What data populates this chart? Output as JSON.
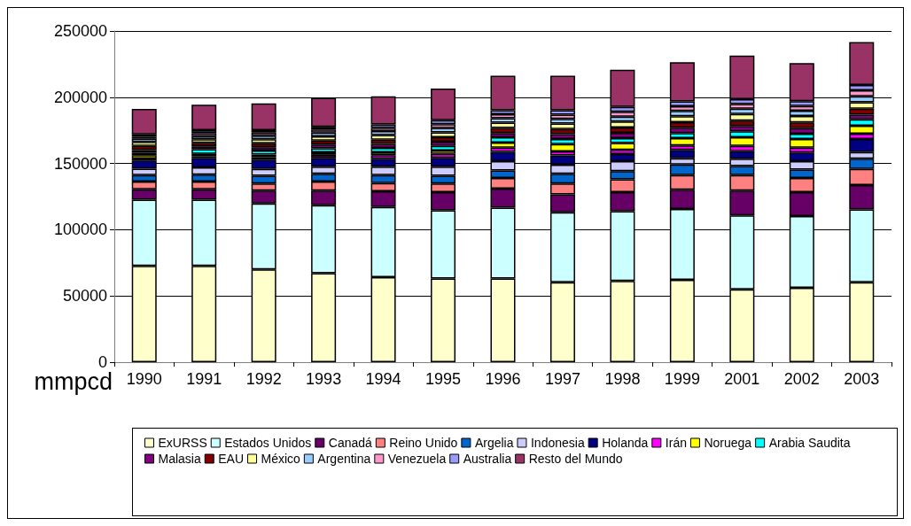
{
  "chart_data": {
    "type": "bar",
    "stacked": true,
    "ylabel": "mmpcd",
    "categories": [
      "1990",
      "1991",
      "1992",
      "1993",
      "1994",
      "1995",
      "1996",
      "1997",
      "1998",
      "1999",
      "2001",
      "2002",
      "2003"
    ],
    "ylim": [
      0,
      250000
    ],
    "yticks": [
      0,
      50000,
      100000,
      150000,
      200000,
      250000
    ],
    "grid": "y",
    "legend": "bottom",
    "series": [
      {
        "name": "ExURSS",
        "color": "#ffffcc",
        "values": [
          72700,
          72700,
          70000,
          67200,
          64200,
          63100,
          63100,
          60400,
          61400,
          62100,
          55000,
          56100,
          60400
        ]
      },
      {
        "name": "Estados Unidos",
        "color": "#ccffff",
        "values": [
          50000,
          50000,
          49900,
          51200,
          53000,
          51500,
          53600,
          52700,
          52600,
          53600,
          55800,
          54200,
          54900
        ]
      },
      {
        "name": "Canadá",
        "color": "#660066",
        "values": [
          7800,
          7800,
          9600,
          11100,
          11800,
          13800,
          14300,
          13600,
          14400,
          14400,
          18700,
          18100,
          18400
        ]
      },
      {
        "name": "Reino Unido",
        "color": "#ff8080",
        "values": [
          5800,
          5800,
          5300,
          6800,
          6200,
          6400,
          8000,
          8100,
          9600,
          11100,
          11700,
          10600,
          12200
        ]
      },
      {
        "name": "Argelia",
        "color": "#0066cc",
        "values": [
          4900,
          5300,
          5900,
          5900,
          6000,
          5900,
          5800,
          7400,
          6300,
          8000,
          6800,
          6400,
          7600
        ]
      },
      {
        "name": "Indonesia",
        "color": "#ccccff",
        "values": [
          4900,
          5500,
          5200,
          5300,
          6300,
          6800,
          7000,
          6800,
          7500,
          4700,
          5500,
          6400,
          5100
        ]
      },
      {
        "name": "Holanda",
        "color": "#000080",
        "values": [
          6100,
          7200,
          7000,
          6800,
          6000,
          6800,
          7000,
          7100,
          5300,
          6400,
          5800,
          6400,
          9800
        ]
      },
      {
        "name": "Irán",
        "color": "#ff00ff",
        "values": [
          1500,
          1200,
          1800,
          2200,
          2800,
          3000,
          3200,
          3000,
          3200,
          3300,
          4000,
          3800,
          4000
        ]
      },
      {
        "name": "Noruega",
        "color": "#ffff00",
        "values": [
          2500,
          1800,
          2000,
          2000,
          2200,
          2500,
          3800,
          5500,
          5200,
          5500,
          6500,
          6500,
          6000
        ]
      },
      {
        "name": "Arabia Saudita",
        "color": "#00ffff",
        "values": [
          2000,
          3500,
          3000,
          3000,
          3200,
          3500,
          4000,
          3800,
          3600,
          3800,
          4500,
          4000,
          5000
        ]
      },
      {
        "name": "Malasia",
        "color": "#800080",
        "values": [
          2000,
          2200,
          2500,
          2800,
          3000,
          3200,
          3200,
          3800,
          4000,
          4000,
          4000,
          4200,
          3500
        ]
      },
      {
        "name": "EAU",
        "color": "#800000",
        "values": [
          3000,
          2600,
          3000,
          3000,
          3200,
          3300,
          3800,
          3800,
          4000,
          4200,
          4000,
          4200,
          4500
        ]
      },
      {
        "name": "México",
        "color": "#ffff99",
        "values": [
          3000,
          2600,
          3000,
          3200,
          3500,
          3700,
          4000,
          4200,
          4500,
          4600,
          5000,
          5000,
          4800
        ]
      },
      {
        "name": "Argentina",
        "color": "#99ccff",
        "values": [
          2500,
          2500,
          2800,
          2800,
          3000,
          3300,
          3300,
          3500,
          3800,
          3900,
          4000,
          4000,
          4500
        ]
      },
      {
        "name": "Venezuela",
        "color": "#ff99cc",
        "values": [
          1500,
          2200,
          2300,
          2400,
          2500,
          2800,
          3000,
          3200,
          3600,
          3500,
          3500,
          3500,
          4500
        ]
      },
      {
        "name": "Australia",
        "color": "#9999ff",
        "values": [
          1800,
          2300,
          1900,
          2000,
          2500,
          3000,
          3000,
          3200,
          3600,
          3800,
          3800,
          3700,
          4000
        ]
      },
      {
        "name": "Resto del Mundo",
        "color": "#993366",
        "values": [
          19100,
          19100,
          20200,
          21900,
          21300,
          24000,
          26100,
          26100,
          28100,
          29500,
          32900,
          28700,
          32500
        ]
      }
    ]
  }
}
